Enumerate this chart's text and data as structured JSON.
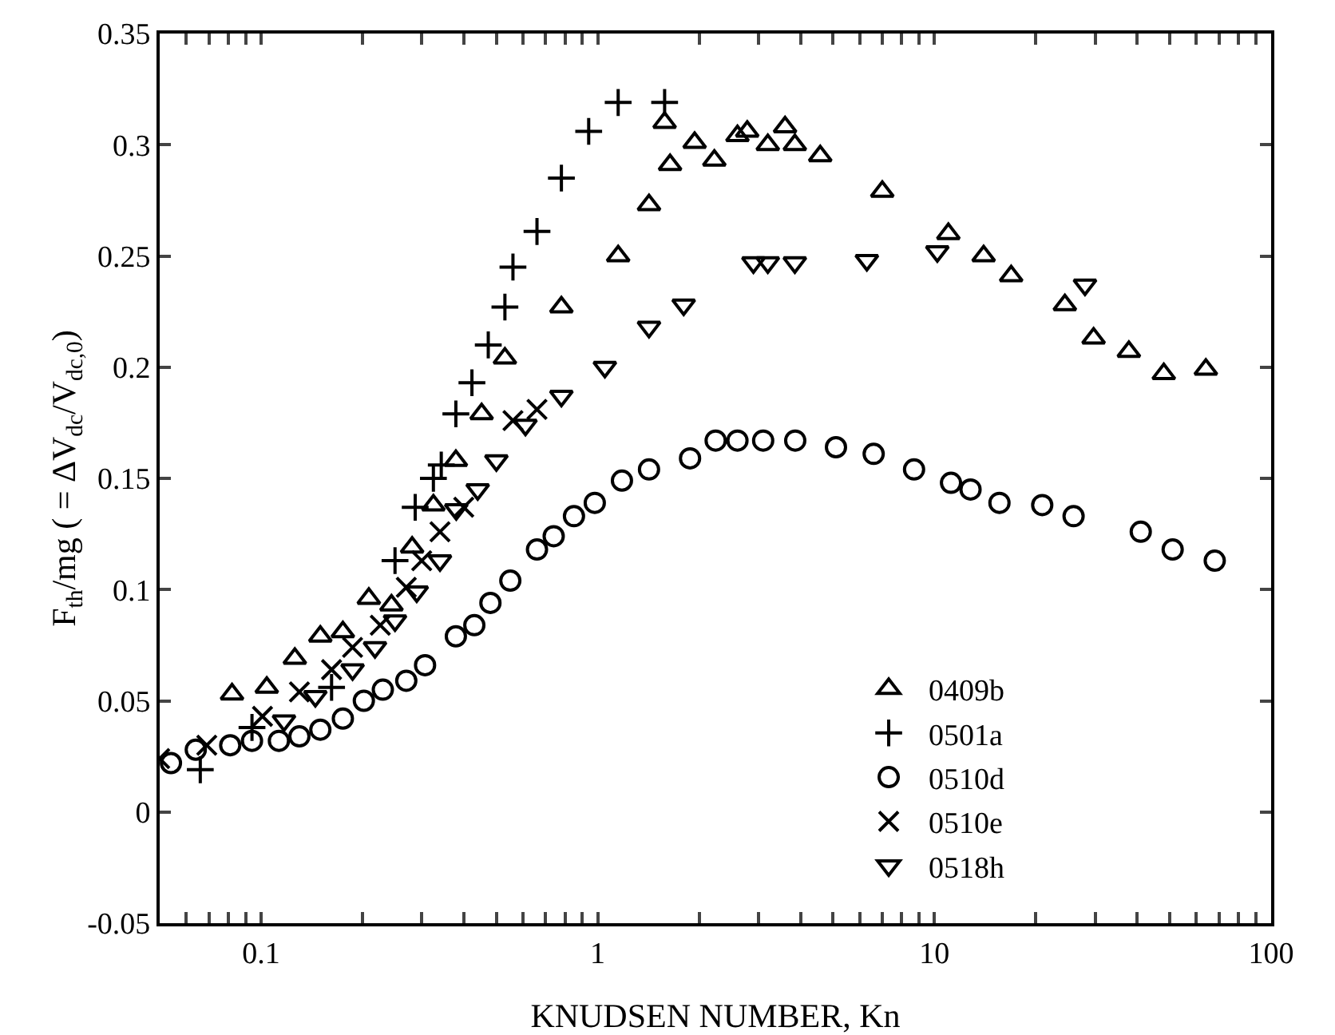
{
  "chart_data": {
    "type": "scatter",
    "xlabel": "KNUDSEN NUMBER, Kn",
    "ylabel": "F$_{th}$/mg ( = ΔV$_{dc}$/V$_{dc,0}$)",
    "log": "x",
    "grid": false,
    "legend": "bottom right",
    "xlim": [
      0.05,
      100
    ],
    "ylim": [
      -0.05,
      0.35
    ],
    "xticks": [
      {
        "value": 0.06,
        "label": null
      },
      {
        "value": 0.07,
        "label": null
      },
      {
        "value": 0.08,
        "label": null
      },
      {
        "value": 0.09,
        "label": null
      },
      0.1,
      {
        "value": 0.2,
        "label": null
      },
      {
        "value": 0.3,
        "label": null
      },
      {
        "value": 0.4,
        "label": null
      },
      {
        "value": 0.5,
        "label": null
      },
      {
        "value": 0.6,
        "label": null
      },
      {
        "value": 0.7,
        "label": null
      },
      {
        "value": 0.8,
        "label": null
      },
      {
        "value": 0.9,
        "label": null
      },
      1,
      {
        "value": 2,
        "label": null
      },
      {
        "value": 3,
        "label": null
      },
      {
        "value": 4,
        "label": null
      },
      {
        "value": 5,
        "label": null
      },
      {
        "value": 6,
        "label": null
      },
      {
        "value": 7,
        "label": null
      },
      {
        "value": 8,
        "label": null
      },
      {
        "value": 9,
        "label": null
      },
      10,
      {
        "value": 20,
        "label": null
      },
      {
        "value": 30,
        "label": null
      },
      {
        "value": 40,
        "label": null
      },
      {
        "value": 50,
        "label": null
      },
      {
        "value": 60,
        "label": null
      },
      {
        "value": 70,
        "label": null
      },
      {
        "value": 80,
        "label": null
      },
      {
        "value": 90,
        "label": null
      },
      100
    ],
    "yticks": [
      -0.05,
      0,
      0.05,
      0.1,
      0.15,
      0.2,
      0.25,
      0.3,
      0.35
    ],
    "series": [
      {
        "name": "0409b",
        "color": "#000000",
        "marker": "triangle",
        "x": [
          0.082,
          0.104,
          0.126,
          0.15,
          0.175,
          0.209,
          0.244,
          0.281,
          0.325,
          0.379,
          0.452,
          0.53,
          0.78,
          1.15,
          1.42,
          1.64,
          1.58,
          1.94,
          2.22,
          2.6,
          2.78,
          3.2,
          3.6,
          3.85,
          4.58,
          7.0,
          11,
          14,
          16.9,
          24.4,
          29.7,
          37.8,
          48,
          64
        ],
        "values": [
          0.053,
          0.056,
          0.069,
          0.079,
          0.081,
          0.096,
          0.093,
          0.119,
          0.138,
          0.158,
          0.179,
          0.204,
          0.227,
          0.25,
          0.273,
          0.291,
          0.31,
          0.301,
          0.293,
          0.304,
          0.306,
          0.3,
          0.308,
          0.3,
          0.295,
          0.279,
          0.26,
          0.25,
          0.241,
          0.228,
          0.213,
          0.207,
          0.197,
          0.199
        ]
      },
      {
        "name": "0501a",
        "color": "#000000",
        "marker": "cross",
        "x": [
          0.066,
          0.094,
          0.162,
          0.209,
          0.25,
          0.287,
          0.325,
          0.343,
          0.379,
          0.423,
          0.473,
          0.53,
          0.56,
          0.66,
          0.78,
          0.94,
          1.15,
          1.58
        ],
        "values": [
          0.019,
          0.038,
          0.056,
          null,
          0.113,
          0.137,
          0.15,
          0.156,
          0.179,
          0.193,
          0.21,
          0.227,
          0.245,
          0.261,
          0.285,
          0.306,
          0.319,
          0.319
        ]
      },
      {
        "name": "0510d",
        "color": "#000000",
        "marker": "circle",
        "x": [
          0.054,
          0.064,
          0.081,
          0.094,
          0.113,
          0.13,
          0.15,
          0.175,
          0.202,
          0.23,
          0.27,
          0.307,
          0.379,
          0.43,
          0.48,
          0.55,
          0.66,
          0.74,
          0.85,
          0.98,
          1.18,
          1.42,
          1.88,
          2.24,
          2.6,
          3.1,
          3.86,
          5.1,
          6.6,
          8.7,
          11.2,
          12.8,
          15.6,
          20.9,
          25.9,
          41,
          51,
          68
        ],
        "values": [
          0.022,
          0.028,
          0.03,
          0.032,
          0.032,
          0.034,
          0.037,
          0.042,
          0.05,
          0.055,
          0.059,
          0.066,
          0.079,
          0.084,
          0.094,
          0.104,
          0.118,
          0.124,
          0.133,
          0.139,
          0.149,
          0.154,
          0.159,
          0.167,
          0.167,
          0.167,
          0.167,
          0.164,
          0.161,
          0.154,
          0.148,
          0.145,
          0.139,
          0.138,
          0.133,
          0.126,
          0.118,
          0.113
        ]
      },
      {
        "name": "0510e",
        "color": "#000000",
        "marker": "x",
        "x": [
          0.05,
          0.069,
          0.101,
          0.13,
          0.162,
          0.187,
          0.226,
          0.27,
          0.3,
          0.34,
          0.4,
          0.56,
          0.66
        ],
        "values": [
          0.024,
          0.03,
          0.043,
          0.054,
          0.064,
          0.074,
          0.084,
          0.101,
          0.113,
          0.126,
          0.137,
          0.176,
          0.181
        ]
      },
      {
        "name": "0518h",
        "color": "#000000",
        "marker": "triangle-down",
        "x": [
          0.117,
          0.145,
          0.187,
          0.218,
          0.25,
          0.29,
          0.34,
          0.38,
          0.44,
          0.5,
          0.61,
          0.78,
          1.05,
          1.42,
          1.8,
          2.9,
          3.2,
          3.85,
          6.3,
          10.2,
          28
        ],
        "values": [
          0.041,
          0.052,
          0.064,
          0.074,
          0.086,
          0.099,
          0.113,
          0.136,
          0.145,
          0.158,
          0.174,
          0.187,
          0.2,
          0.218,
          0.228,
          0.247,
          0.247,
          0.247,
          0.248,
          0.252,
          0.237
        ]
      }
    ]
  }
}
